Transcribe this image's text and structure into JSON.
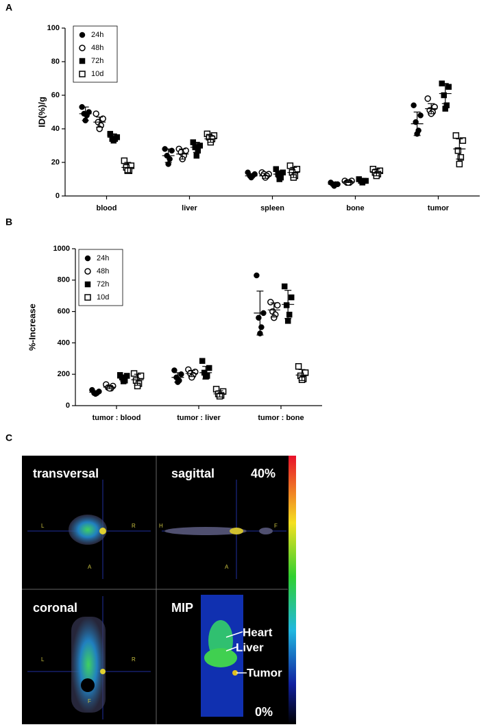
{
  "chart_data": [
    {
      "type": "dot",
      "panel_label": "A",
      "y_label": "ID(%)/g",
      "categories": [
        "blood",
        "liver",
        "spleen",
        "bone",
        "tumor"
      ],
      "ylim": [
        0,
        100
      ],
      "yticks": [
        0,
        20,
        40,
        60,
        80,
        100
      ],
      "series": [
        {
          "name": "24h",
          "marker": "circle-filled",
          "values": [
            [
              53,
              50,
              49,
              48,
              45
            ],
            [
              28,
              27,
              24,
              22,
              19
            ],
            [
              14,
              13,
              12,
              12,
              11
            ],
            [
              8,
              7,
              7,
              7,
              6
            ],
            [
              54,
              48,
              44,
              39,
              37
            ]
          ],
          "means": [
            49,
            24,
            12,
            7,
            43
          ],
          "errors": [
            4,
            4,
            1,
            1,
            7
          ]
        },
        {
          "name": "48h",
          "marker": "circle-open",
          "values": [
            [
              49,
              46,
              44,
              42,
              40
            ],
            [
              28,
              27,
              26,
              24,
              22
            ],
            [
              14,
              13,
              13,
              12,
              11
            ],
            [
              9,
              9,
              8,
              8,
              8
            ],
            [
              58,
              53,
              51,
              50,
              49
            ]
          ],
          "means": [
            44,
            25,
            12,
            8.5,
            52
          ],
          "errors": [
            3,
            3,
            1.5,
            0.5,
            3
          ]
        },
        {
          "name": "72h",
          "marker": "square-filled",
          "values": [
            [
              37,
              35,
              34,
              34,
              33
            ],
            [
              32,
              30,
              29,
              27,
              24
            ],
            [
              16,
              14,
              13,
              11,
              10
            ],
            [
              10,
              9,
              9,
              9,
              8
            ],
            [
              67,
              65,
              60,
              54,
              52
            ]
          ],
          "means": [
            35,
            29,
            13,
            9,
            61
          ],
          "errors": [
            2,
            3,
            2,
            0.5,
            6
          ]
        },
        {
          "name": "10d",
          "marker": "square-open",
          "values": [
            [
              21,
              18,
              17,
              15,
              15
            ],
            [
              37,
              36,
              35,
              34,
              32
            ],
            [
              18,
              16,
              14,
              12,
              11
            ],
            [
              16,
              15,
              14,
              13,
              12
            ],
            [
              36,
              33,
              27,
              23,
              19
            ]
          ],
          "means": [
            17,
            34,
            14,
            14,
            28
          ],
          "errors": [
            3,
            2,
            3,
            2,
            6
          ]
        }
      ]
    },
    {
      "type": "dot",
      "panel_label": "B",
      "y_label": "%-Increase",
      "categories": [
        "tumor : blood",
        "tumor : liver",
        "tumor : bone"
      ],
      "ylim": [
        0,
        1000
      ],
      "yticks": [
        0,
        200,
        400,
        600,
        800,
        1000
      ],
      "series": [
        {
          "name": "24h",
          "marker": "circle-filled",
          "values": [
            [
              100,
              90,
              80,
              80,
              75
            ],
            [
              225,
              200,
              180,
              160,
              150
            ],
            [
              830,
              590,
              560,
              500,
              460
            ]
          ],
          "means": [
            85,
            180,
            590
          ],
          "errors": [
            10,
            30,
            140
          ]
        },
        {
          "name": "48h",
          "marker": "circle-open",
          "values": [
            [
              135,
              125,
              115,
              110,
              110
            ],
            [
              230,
              215,
              205,
              195,
              180
            ],
            [
              660,
              640,
              600,
              580,
              560
            ]
          ],
          "means": [
            118,
            205,
            610
          ],
          "errors": [
            10,
            20,
            45
          ]
        },
        {
          "name": "72h",
          "marker": "square-filled",
          "values": [
            [
              195,
              190,
              180,
              160,
              155
            ],
            [
              285,
              240,
              210,
              190,
              185
            ],
            [
              760,
              690,
              640,
              580,
              540
            ]
          ],
          "means": [
            175,
            210,
            645
          ],
          "errors": [
            18,
            40,
            90
          ]
        },
        {
          "name": "10d",
          "marker": "square-open",
          "values": [
            [
              205,
              190,
              160,
              140,
              125
            ],
            [
              105,
              90,
              75,
              65,
              60
            ],
            [
              250,
              210,
              190,
              170,
              165
            ]
          ],
          "means": [
            165,
            75,
            195
          ],
          "errors": [
            35,
            20,
            35
          ]
        }
      ]
    }
  ],
  "image_panel": {
    "label": "C",
    "views": [
      {
        "title": "transversal",
        "markers": [
          "L",
          "R",
          "A"
        ]
      },
      {
        "title": "sagittal",
        "markers": [
          "H",
          "F",
          "A"
        ]
      },
      {
        "title": "coronal",
        "markers": [
          "L",
          "R",
          "F"
        ]
      },
      {
        "title": "MIP"
      }
    ],
    "scale": {
      "max": "40%",
      "min": "0%"
    },
    "annotations": [
      "Heart",
      "Liver",
      "Tumor"
    ]
  }
}
